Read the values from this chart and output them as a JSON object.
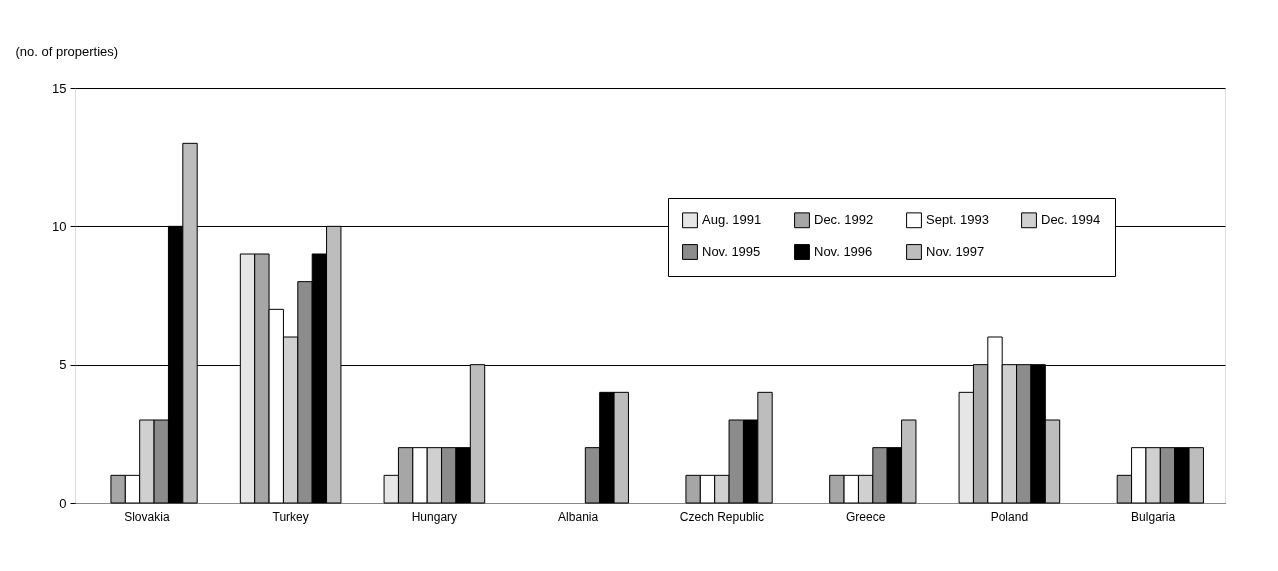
{
  "chart_data": {
    "type": "bar",
    "ylabel": "(no. of properties)",
    "categories": [
      "Slovakia",
      "Turkey",
      "Hungary",
      "Albania",
      "Czech Republic",
      "Greece",
      "Poland",
      "Bulgaria"
    ],
    "series": [
      {
        "name": "Aug. 1991",
        "color": "#e6e6e6",
        "values": [
          null,
          9,
          1,
          null,
          null,
          null,
          4,
          null
        ]
      },
      {
        "name": "Dec. 1992",
        "color": "#a6a6a6",
        "values": [
          1,
          9,
          2,
          null,
          1,
          1,
          5,
          1
        ]
      },
      {
        "name": "Sept. 1993",
        "color": "#ffffff",
        "values": [
          1,
          7,
          2,
          null,
          1,
          1,
          6,
          2
        ]
      },
      {
        "name": "Dec. 1994",
        "color": "#d0d0d0",
        "values": [
          3,
          6,
          2,
          null,
          1,
          1,
          5,
          2
        ]
      },
      {
        "name": "Nov. 1995",
        "color": "#8c8c8c",
        "values": [
          3,
          8,
          2,
          2,
          3,
          2,
          5,
          2
        ]
      },
      {
        "name": "Nov. 1996",
        "color": "#000000",
        "values": [
          10,
          9,
          2,
          4,
          3,
          2,
          5,
          2
        ]
      },
      {
        "name": "Nov. 1997",
        "color": "#bdbdbd",
        "values": [
          13,
          10,
          5,
          4,
          4,
          3,
          3,
          2
        ]
      }
    ],
    "ylim": [
      0,
      15
    ],
    "yticks": [
      0,
      5,
      10,
      15
    ],
    "grid": "y",
    "legend": "top right"
  }
}
